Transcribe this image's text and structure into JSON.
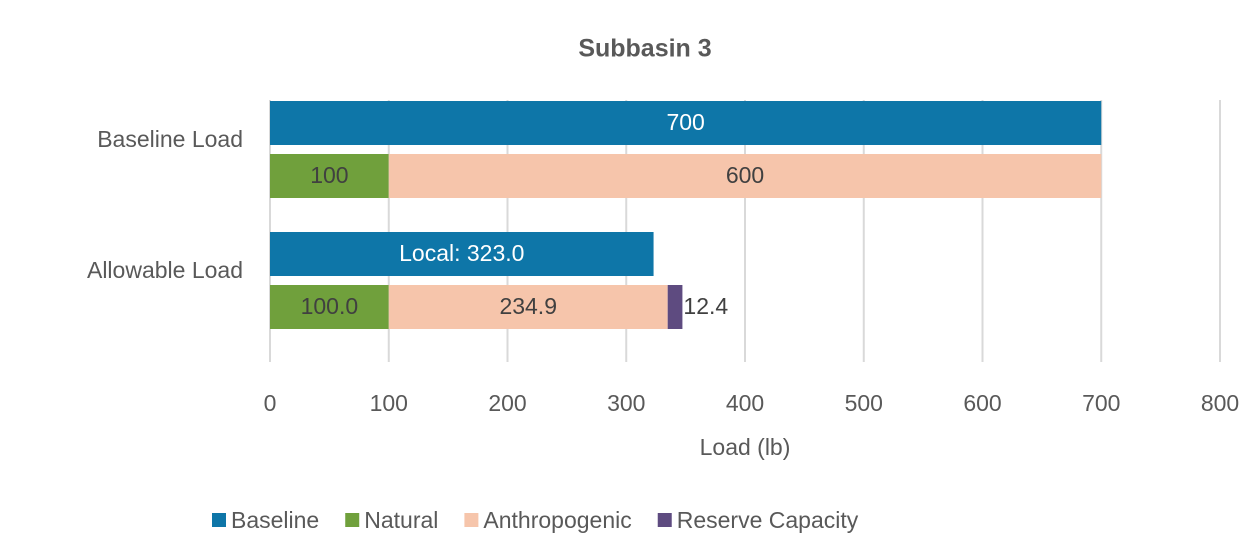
{
  "chart_data": {
    "type": "bar",
    "orientation": "horizontal",
    "title": "Subbasin 3",
    "categories": [
      "Baseline Load",
      "Allowable Load"
    ],
    "series": [
      {
        "name": "Baseline",
        "color": "#0e76a8",
        "values": [
          700,
          323.0
        ],
        "value_labels": [
          "700",
          "Local: 323.0"
        ]
      },
      {
        "name": "Natural",
        "color": "#70a03c",
        "values": [
          100,
          100.0
        ],
        "value_labels": [
          "100",
          "100.0"
        ]
      },
      {
        "name": "Anthropogenic",
        "color": "#f6c5ab",
        "values": [
          600,
          234.9
        ],
        "value_labels": [
          "600",
          "234.9"
        ]
      },
      {
        "name": "Reserve Capacity",
        "color": "#5e4b80",
        "values": [
          null,
          12.4
        ],
        "value_labels": [
          null,
          "12.4"
        ]
      }
    ],
    "xlabel": "Load (lb)",
    "xlim": [
      0,
      800
    ],
    "xticks": [
      0,
      100,
      200,
      300,
      400,
      500,
      600,
      700,
      800
    ],
    "grid": true,
    "legend": "bottom"
  }
}
